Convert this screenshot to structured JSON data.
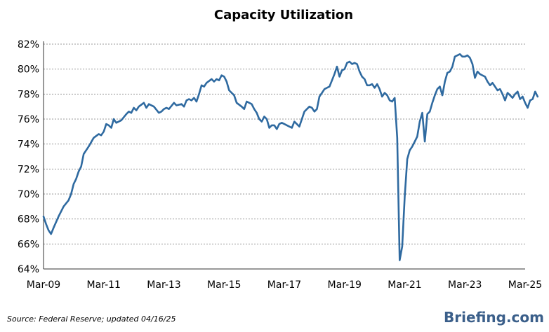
{
  "chart_data": {
    "type": "line",
    "title": "Capacity Utilization",
    "xlabel": "",
    "ylabel": "",
    "ylim": [
      64,
      82
    ],
    "ytick_values": [
      64,
      66,
      68,
      70,
      72,
      74,
      76,
      78,
      80,
      82
    ],
    "ytick_labels": [
      "64%",
      "66%",
      "68%",
      "70%",
      "72%",
      "74%",
      "76%",
      "78%",
      "80%",
      "82%"
    ],
    "xlim": [
      2009.167,
      2025.167
    ],
    "xtick_values": [
      2009.167,
      2011.167,
      2013.167,
      2015.167,
      2017.167,
      2019.167,
      2021.167,
      2023.167,
      2025.167
    ],
    "xtick_labels": [
      "Mar-09",
      "Mar-11",
      "Mar-13",
      "Mar-15",
      "Mar-17",
      "Mar-19",
      "Mar-21",
      "Mar-23",
      "Mar-25"
    ],
    "grid": true,
    "series": [
      {
        "color": "#2f6aa0",
        "points": [
          [
            2009.167,
            68.2
          ],
          [
            2009.25,
            67.6
          ],
          [
            2009.333,
            67.1
          ],
          [
            2009.417,
            66.8
          ],
          [
            2009.5,
            67.3
          ],
          [
            2009.667,
            68.2
          ],
          [
            2009.833,
            69.0
          ],
          [
            2010.0,
            69.5
          ],
          [
            2010.083,
            70.0
          ],
          [
            2010.167,
            70.8
          ],
          [
            2010.25,
            71.2
          ],
          [
            2010.333,
            71.8
          ],
          [
            2010.417,
            72.2
          ],
          [
            2010.5,
            73.2
          ],
          [
            2010.667,
            73.8
          ],
          [
            2010.833,
            74.5
          ],
          [
            2011.0,
            74.8
          ],
          [
            2011.083,
            74.7
          ],
          [
            2011.167,
            75.0
          ],
          [
            2011.25,
            75.6
          ],
          [
            2011.333,
            75.5
          ],
          [
            2011.417,
            75.3
          ],
          [
            2011.5,
            76.0
          ],
          [
            2011.583,
            75.7
          ],
          [
            2011.75,
            75.9
          ],
          [
            2011.917,
            76.4
          ],
          [
            2012.0,
            76.6
          ],
          [
            2012.083,
            76.5
          ],
          [
            2012.167,
            76.9
          ],
          [
            2012.25,
            76.7
          ],
          [
            2012.333,
            77.0
          ],
          [
            2012.5,
            77.3
          ],
          [
            2012.583,
            76.9
          ],
          [
            2012.667,
            77.2
          ],
          [
            2012.833,
            77.0
          ],
          [
            2013.0,
            76.5
          ],
          [
            2013.083,
            76.6
          ],
          [
            2013.167,
            76.8
          ],
          [
            2013.25,
            76.9
          ],
          [
            2013.333,
            76.8
          ],
          [
            2013.5,
            77.3
          ],
          [
            2013.583,
            77.1
          ],
          [
            2013.75,
            77.2
          ],
          [
            2013.833,
            77.0
          ],
          [
            2013.917,
            77.5
          ],
          [
            2014.0,
            77.6
          ],
          [
            2014.083,
            77.5
          ],
          [
            2014.167,
            77.7
          ],
          [
            2014.25,
            77.4
          ],
          [
            2014.333,
            78.0
          ],
          [
            2014.417,
            78.7
          ],
          [
            2014.5,
            78.6
          ],
          [
            2014.583,
            78.9
          ],
          [
            2014.75,
            79.2
          ],
          [
            2014.833,
            79.0
          ],
          [
            2014.917,
            79.2
          ],
          [
            2015.0,
            79.1
          ],
          [
            2015.083,
            79.5
          ],
          [
            2015.167,
            79.4
          ],
          [
            2015.25,
            79.0
          ],
          [
            2015.333,
            78.3
          ],
          [
            2015.5,
            77.9
          ],
          [
            2015.583,
            77.3
          ],
          [
            2015.75,
            77.0
          ],
          [
            2015.833,
            76.8
          ],
          [
            2015.917,
            77.4
          ],
          [
            2016.0,
            77.3
          ],
          [
            2016.083,
            77.2
          ],
          [
            2016.167,
            76.8
          ],
          [
            2016.25,
            76.5
          ],
          [
            2016.333,
            76.0
          ],
          [
            2016.417,
            75.8
          ],
          [
            2016.5,
            76.2
          ],
          [
            2016.583,
            76.0
          ],
          [
            2016.667,
            75.3
          ],
          [
            2016.75,
            75.5
          ],
          [
            2016.833,
            75.5
          ],
          [
            2016.917,
            75.2
          ],
          [
            2017.0,
            75.6
          ],
          [
            2017.083,
            75.7
          ],
          [
            2017.167,
            75.6
          ],
          [
            2017.333,
            75.4
          ],
          [
            2017.417,
            75.3
          ],
          [
            2017.5,
            75.8
          ],
          [
            2017.583,
            75.6
          ],
          [
            2017.667,
            75.4
          ],
          [
            2017.75,
            76.0
          ],
          [
            2017.833,
            76.6
          ],
          [
            2017.917,
            76.8
          ],
          [
            2018.0,
            77.0
          ],
          [
            2018.083,
            76.9
          ],
          [
            2018.167,
            76.6
          ],
          [
            2018.25,
            76.8
          ],
          [
            2018.333,
            77.8
          ],
          [
            2018.417,
            78.1
          ],
          [
            2018.5,
            78.4
          ],
          [
            2018.583,
            78.5
          ],
          [
            2018.667,
            78.6
          ],
          [
            2018.75,
            79.1
          ],
          [
            2018.833,
            79.6
          ],
          [
            2018.917,
            80.2
          ],
          [
            2019.0,
            79.4
          ],
          [
            2019.083,
            79.9
          ],
          [
            2019.167,
            80.0
          ],
          [
            2019.25,
            80.5
          ],
          [
            2019.333,
            80.6
          ],
          [
            2019.417,
            80.4
          ],
          [
            2019.5,
            80.5
          ],
          [
            2019.583,
            80.4
          ],
          [
            2019.667,
            79.8
          ],
          [
            2019.75,
            79.4
          ],
          [
            2019.833,
            79.2
          ],
          [
            2019.917,
            78.7
          ],
          [
            2020.0,
            78.7
          ],
          [
            2020.083,
            78.8
          ],
          [
            2020.167,
            78.5
          ],
          [
            2020.25,
            78.8
          ],
          [
            2020.333,
            78.4
          ],
          [
            2020.417,
            77.8
          ],
          [
            2020.5,
            78.1
          ],
          [
            2020.583,
            77.9
          ],
          [
            2020.667,
            77.5
          ],
          [
            2020.75,
            77.4
          ],
          [
            2020.833,
            77.7
          ],
          [
            2020.917,
            74.5
          ],
          [
            2021.0,
            64.7
          ],
          [
            2021.083,
            65.8
          ],
          [
            2021.167,
            69.8
          ],
          [
            2021.25,
            72.8
          ],
          [
            2021.333,
            73.5
          ],
          [
            2021.417,
            73.8
          ],
          [
            2021.5,
            74.2
          ],
          [
            2021.583,
            74.6
          ],
          [
            2021.667,
            75.8
          ],
          [
            2021.75,
            76.5
          ],
          [
            2021.833,
            74.2
          ],
          [
            2021.917,
            76.4
          ],
          [
            2022.0,
            76.6
          ],
          [
            2022.083,
            77.3
          ],
          [
            2022.167,
            77.9
          ],
          [
            2022.25,
            78.4
          ],
          [
            2022.333,
            78.6
          ],
          [
            2022.417,
            77.9
          ],
          [
            2022.5,
            79.0
          ],
          [
            2022.583,
            79.7
          ],
          [
            2022.667,
            79.8
          ],
          [
            2022.75,
            80.2
          ],
          [
            2022.833,
            81.0
          ],
          [
            2022.917,
            81.1
          ],
          [
            2023.0,
            81.2
          ],
          [
            2023.083,
            81.0
          ],
          [
            2023.167,
            81.0
          ],
          [
            2023.25,
            81.1
          ],
          [
            2023.333,
            80.9
          ],
          [
            2023.417,
            80.4
          ],
          [
            2023.5,
            79.3
          ],
          [
            2023.583,
            79.8
          ],
          [
            2023.667,
            79.6
          ],
          [
            2023.75,
            79.5
          ],
          [
            2023.833,
            79.4
          ],
          [
            2023.917,
            79.0
          ],
          [
            2024.0,
            78.7
          ],
          [
            2024.083,
            78.9
          ],
          [
            2024.167,
            78.6
          ],
          [
            2024.25,
            78.3
          ],
          [
            2024.333,
            78.4
          ],
          [
            2024.417,
            78.0
          ],
          [
            2024.5,
            77.5
          ],
          [
            2024.583,
            78.1
          ],
          [
            2024.667,
            77.9
          ],
          [
            2024.75,
            77.7
          ],
          [
            2024.833,
            78.0
          ],
          [
            2024.917,
            78.2
          ],
          [
            2025.0,
            77.6
          ],
          [
            2025.083,
            77.8
          ],
          [
            2025.167,
            77.3
          ],
          [
            2025.25,
            76.9
          ],
          [
            2025.333,
            77.5
          ],
          [
            2025.417,
            77.6
          ],
          [
            2025.5,
            78.2
          ],
          [
            2025.583,
            77.8
          ]
        ]
      }
    ]
  },
  "source": "Source: Federal Reserve; updated 04/16/25",
  "brand": "Briefing.com"
}
